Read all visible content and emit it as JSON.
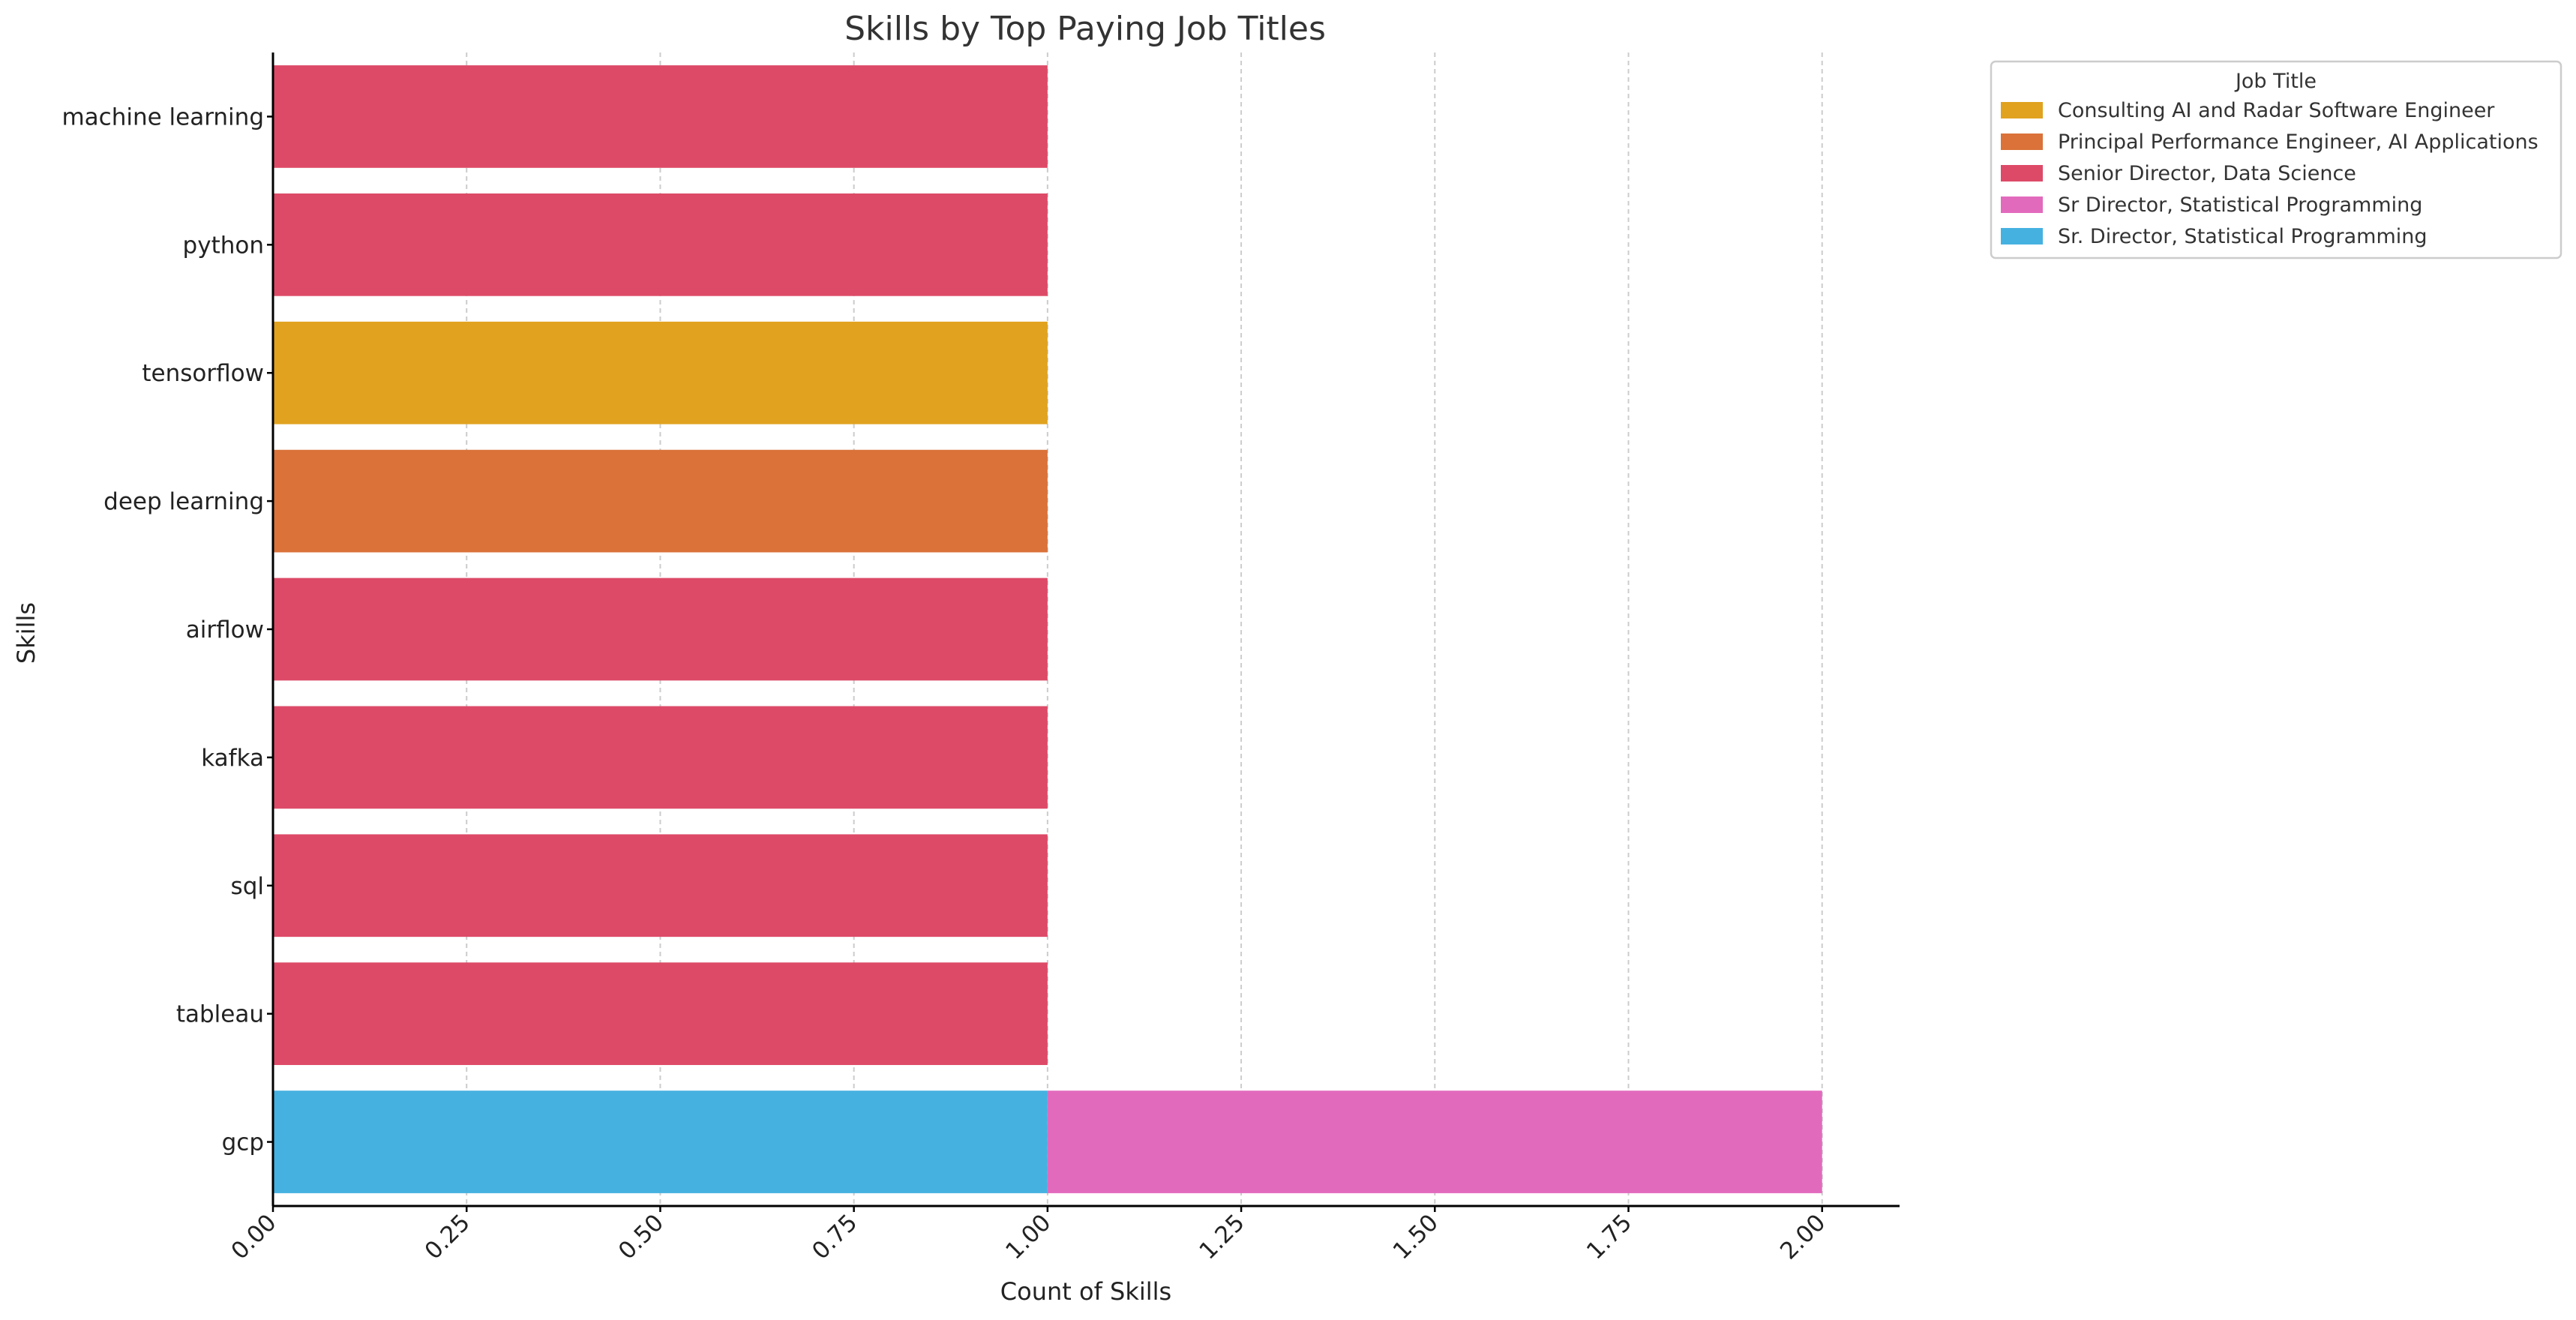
{
  "chart_data": {
    "type": "bar",
    "orientation": "horizontal",
    "stacked": true,
    "title": "Skills by Top Paying Job Titles",
    "xlabel": "Count of Skills",
    "ylabel": "Skills",
    "xlim": [
      0,
      2.1
    ],
    "xticks": [
      "0.00",
      "0.25",
      "0.50",
      "0.75",
      "1.00",
      "1.25",
      "1.50",
      "1.75",
      "2.00"
    ],
    "grid": "x, dashed",
    "categories": [
      "machine learning",
      "python",
      "tensorflow",
      "deep learning",
      "airflow",
      "kafka",
      "sql",
      "tableau",
      "gcp"
    ],
    "legend": {
      "title": "Job Title",
      "placement": "upper-left outside"
    },
    "series": [
      {
        "name": "Consulting AI and Radar Software Engineer",
        "color": "#E0A21F",
        "values": [
          0,
          0,
          1,
          0,
          0,
          0,
          0,
          0,
          0
        ]
      },
      {
        "name": "Principal Performance Engineer, AI Applications",
        "color": "#DA723A",
        "values": [
          0,
          0,
          0,
          1,
          0,
          0,
          0,
          0,
          0
        ]
      },
      {
        "name": "Senior Director, Data Science",
        "color": "#DD4A67",
        "values": [
          1,
          1,
          0,
          0,
          1,
          1,
          1,
          1,
          0
        ]
      },
      {
        "name": "Sr Director, Statistical Programming",
        "color": "#E26ABD",
        "values": [
          0,
          0,
          0,
          0,
          0,
          0,
          0,
          0,
          1
        ]
      },
      {
        "name": "Sr. Director, Statistical Programming",
        "color": "#45B1E1",
        "values": [
          0,
          0,
          0,
          0,
          0,
          0,
          0,
          0,
          1
        ]
      }
    ],
    "stack_order": [
      4,
      0,
      1,
      2,
      3
    ]
  }
}
